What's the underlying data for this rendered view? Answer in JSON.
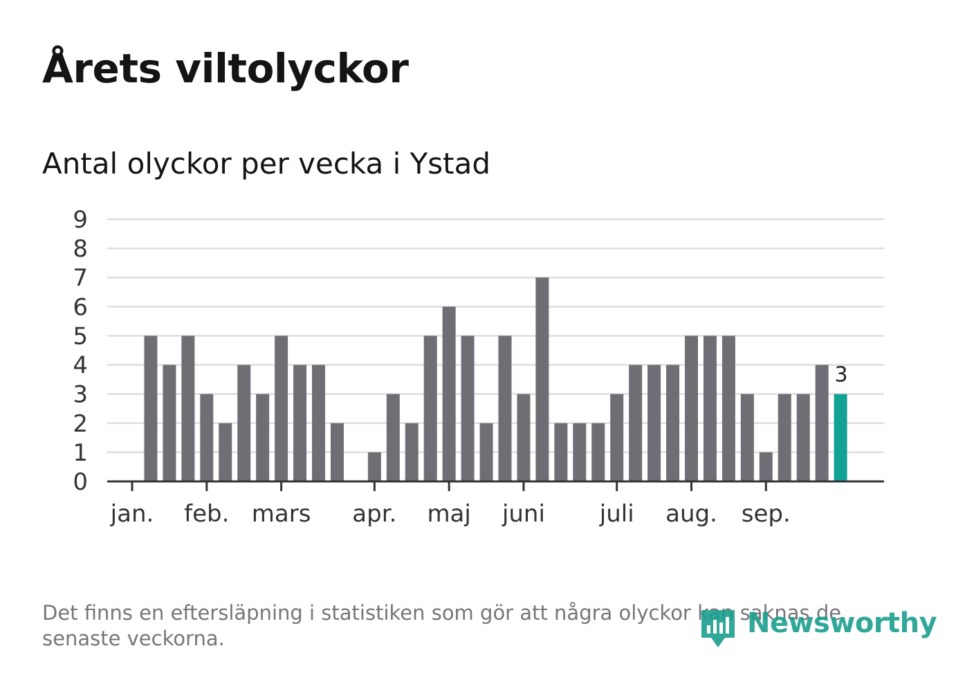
{
  "title": "Årets viltolyckor",
  "subtitle": "Antal olyckor per vecka i Ystad",
  "footnote": "Det finns en eftersläpning i statistiken som gör att några olyckor kan saknas de senaste veckorna.",
  "logo": {
    "text": "Newsworthy",
    "icon": "newsworthy-chart-icon"
  },
  "colors": {
    "bar": "#6f6e74",
    "highlight": "#12a295",
    "grid": "#dedede",
    "axis": "#333333",
    "text": "#333333"
  },
  "chart_data": {
    "type": "bar",
    "title": "Antal olyckor per vecka i Ystad",
    "xlabel": "",
    "ylabel": "",
    "ylim": [
      0,
      9
    ],
    "yticks": [
      0,
      1,
      2,
      3,
      4,
      5,
      6,
      7,
      8,
      9
    ],
    "grid": true,
    "weeks": [
      1,
      2,
      3,
      4,
      5,
      6,
      7,
      8,
      9,
      10,
      11,
      12,
      13,
      14,
      15,
      16,
      17,
      18,
      19,
      20,
      21,
      22,
      23,
      24,
      25,
      26,
      27,
      28,
      29,
      30,
      31,
      32,
      33,
      34,
      35,
      36,
      37,
      38,
      39
    ],
    "values": [
      0,
      5,
      4,
      5,
      3,
      2,
      4,
      3,
      5,
      4,
      4,
      2,
      0,
      1,
      3,
      2,
      5,
      6,
      5,
      2,
      5,
      3,
      7,
      2,
      2,
      2,
      3,
      4,
      4,
      4,
      5,
      5,
      5,
      3,
      1,
      3,
      3,
      4,
      3
    ],
    "highlight_index": 38,
    "highlight_label": "3",
    "month_labels": [
      {
        "label": "jan.",
        "week": 1
      },
      {
        "label": "feb.",
        "week": 5
      },
      {
        "label": "mars",
        "week": 9
      },
      {
        "label": "apr.",
        "week": 14
      },
      {
        "label": "maj",
        "week": 18
      },
      {
        "label": "juni",
        "week": 22
      },
      {
        "label": "juli",
        "week": 27
      },
      {
        "label": "aug.",
        "week": 31
      },
      {
        "label": "sep.",
        "week": 35
      }
    ]
  }
}
